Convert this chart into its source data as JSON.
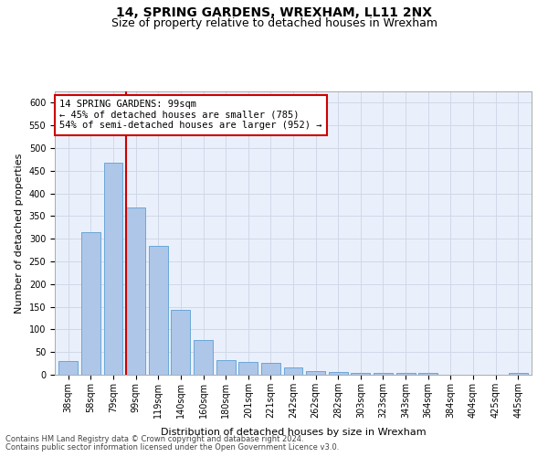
{
  "title": "14, SPRING GARDENS, WREXHAM, LL11 2NX",
  "subtitle": "Size of property relative to detached houses in Wrexham",
  "xlabel": "Distribution of detached houses by size in Wrexham",
  "ylabel": "Number of detached properties",
  "categories": [
    "38sqm",
    "58sqm",
    "79sqm",
    "99sqm",
    "119sqm",
    "140sqm",
    "160sqm",
    "180sqm",
    "201sqm",
    "221sqm",
    "242sqm",
    "262sqm",
    "282sqm",
    "303sqm",
    "323sqm",
    "343sqm",
    "364sqm",
    "384sqm",
    "404sqm",
    "425sqm",
    "445sqm"
  ],
  "values": [
    30,
    315,
    468,
    368,
    285,
    143,
    76,
    33,
    29,
    27,
    16,
    8,
    6,
    5,
    5,
    5,
    5,
    0,
    0,
    0,
    5
  ],
  "bar_color": "#aec6e8",
  "bar_edge_color": "#5a9fd4",
  "redline_index": 3,
  "annotation_line1": "14 SPRING GARDENS: 99sqm",
  "annotation_line2": "← 45% of detached houses are smaller (785)",
  "annotation_line3": "54% of semi-detached houses are larger (952) →",
  "annotation_box_color": "#ffffff",
  "annotation_box_edge": "#cc0000",
  "redline_color": "#cc0000",
  "ylim": [
    0,
    625
  ],
  "yticks": [
    0,
    50,
    100,
    150,
    200,
    250,
    300,
    350,
    400,
    450,
    500,
    550,
    600
  ],
  "grid_color": "#d0d8e8",
  "bg_color": "#eaf0fb",
  "footer_line1": "Contains HM Land Registry data © Crown copyright and database right 2024.",
  "footer_line2": "Contains public sector information licensed under the Open Government Licence v3.0.",
  "title_fontsize": 10,
  "subtitle_fontsize": 9,
  "axis_label_fontsize": 8,
  "tick_fontsize": 7,
  "annotation_fontsize": 7.5,
  "footer_fontsize": 6
}
